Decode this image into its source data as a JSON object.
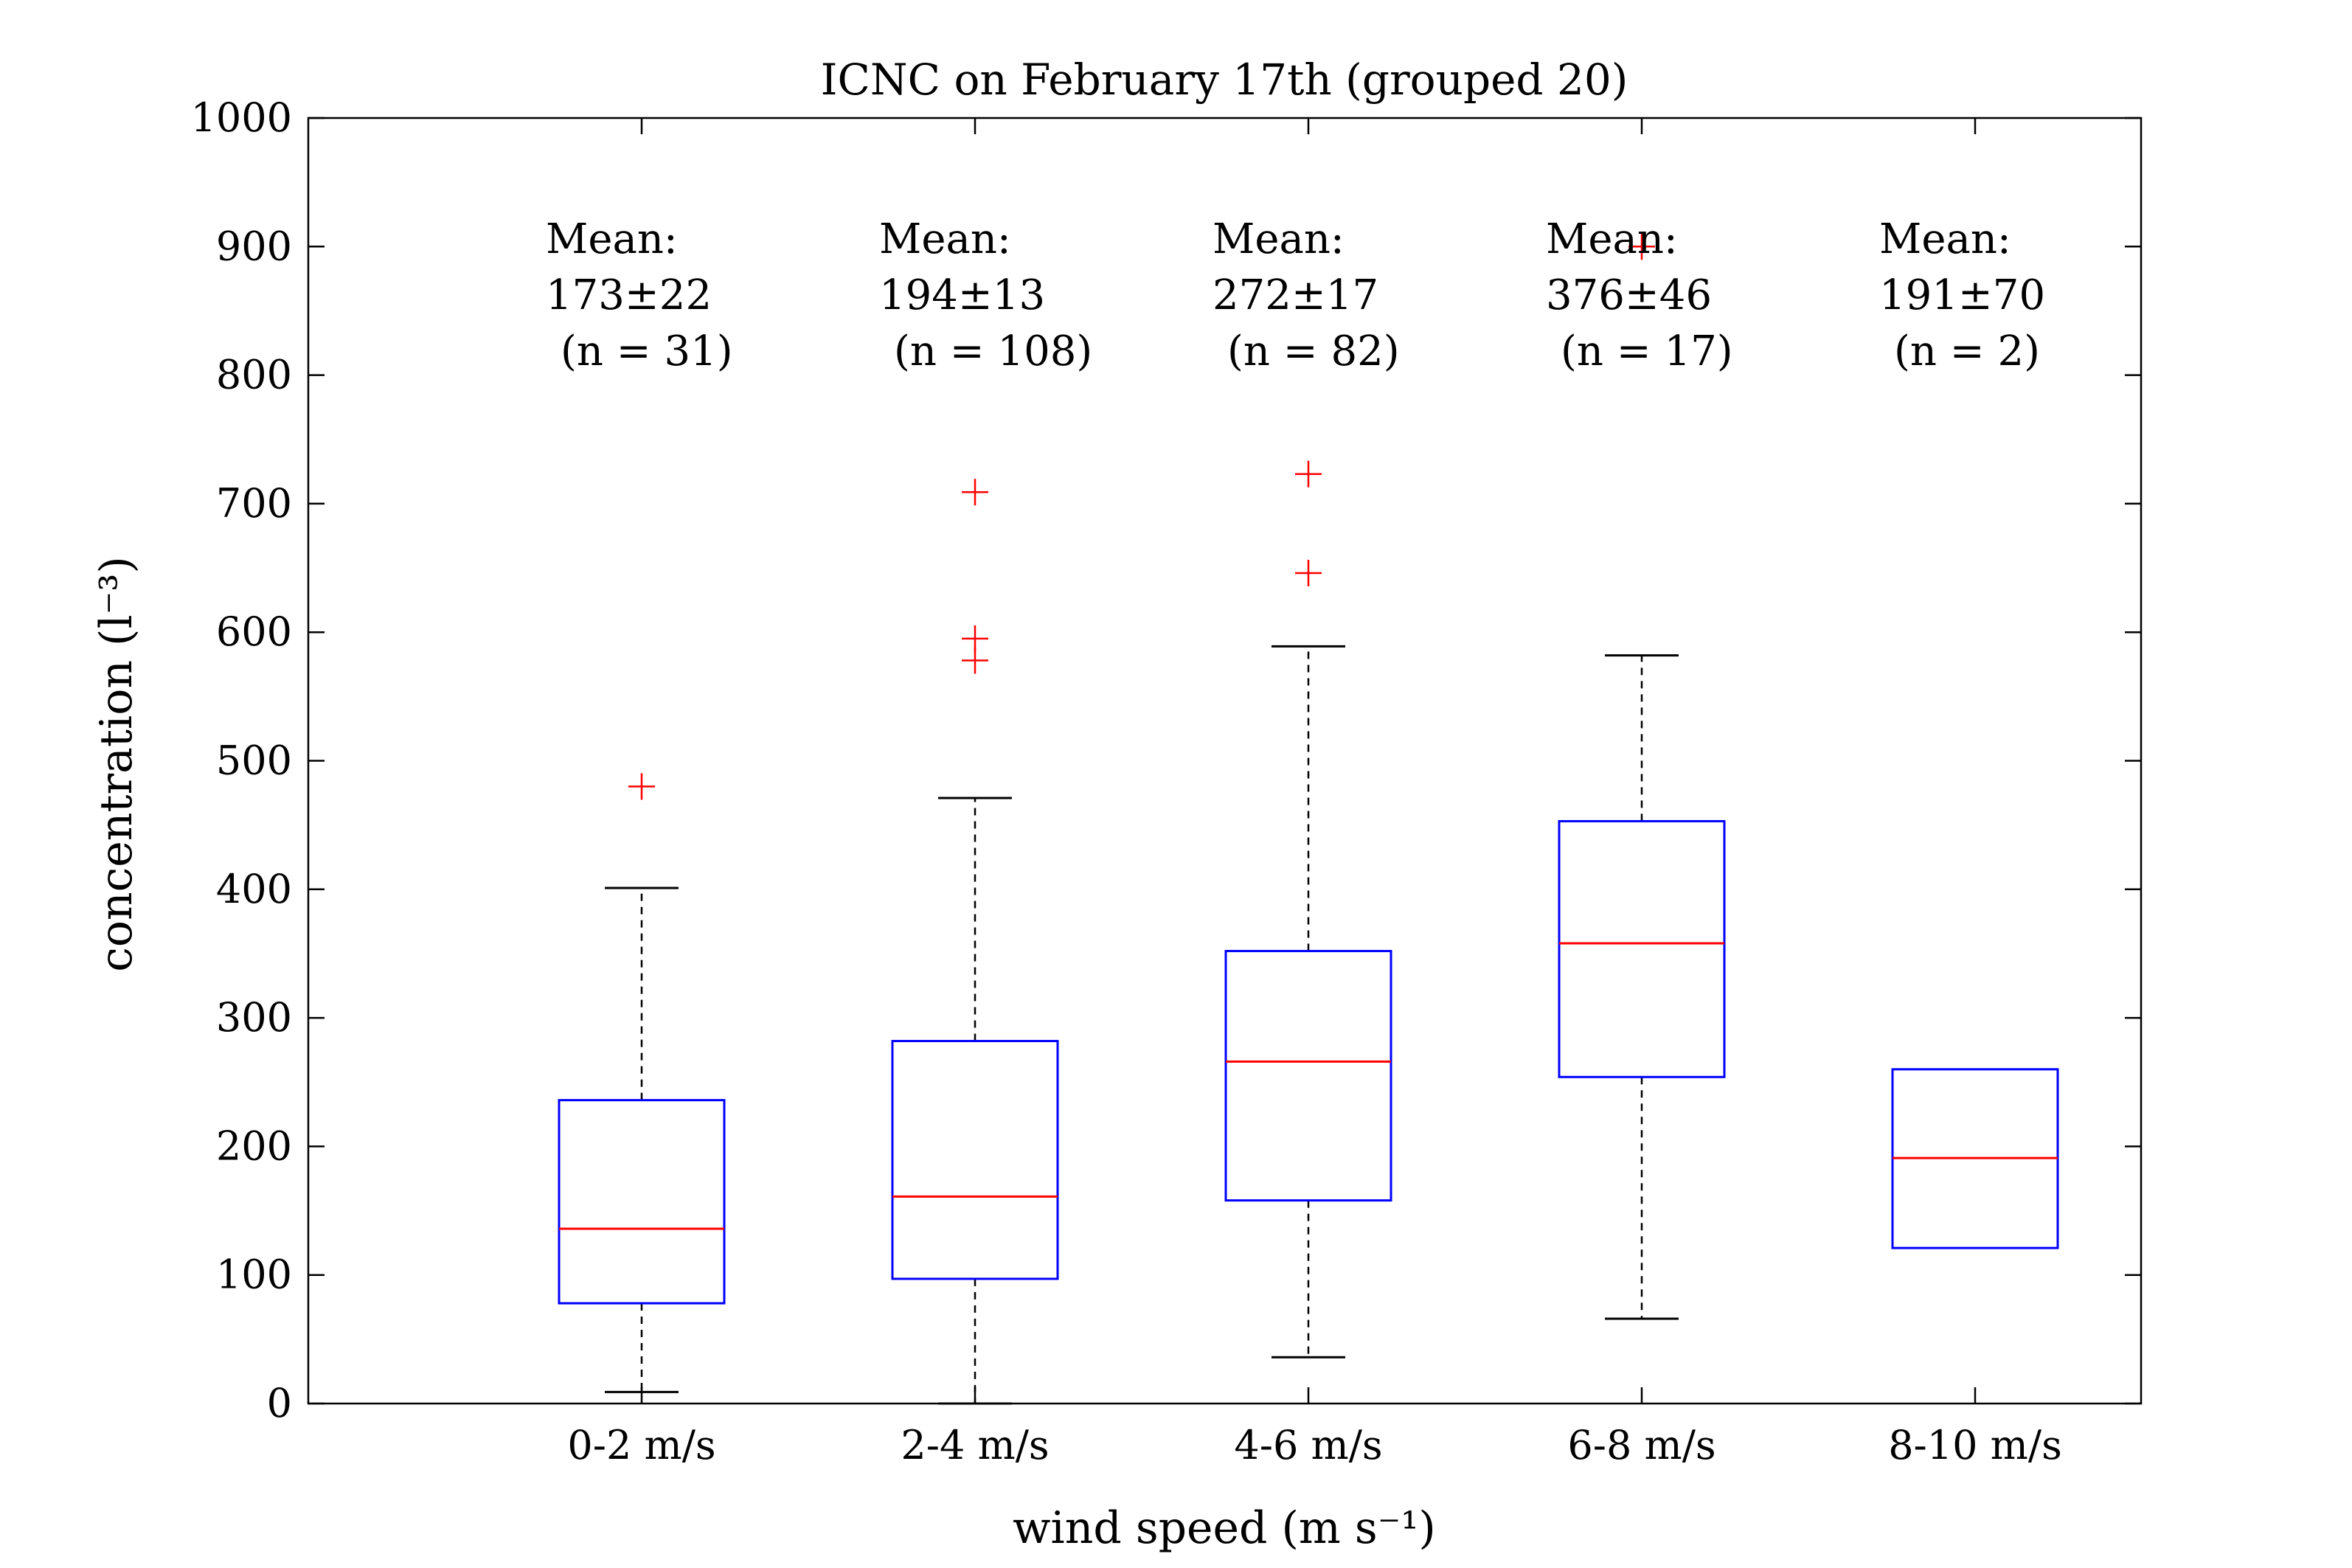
{
  "chart_data": {
    "type": "box",
    "title": "ICNC on February 17th (grouped 20)",
    "xlabel": "wind speed (m s⁻¹)",
    "ylabel": "concentration (l⁻³)",
    "ylim": [
      0,
      1000
    ],
    "yticks": [
      0,
      100,
      200,
      300,
      400,
      500,
      600,
      700,
      800,
      900,
      1000
    ],
    "categories": [
      "0-2 m/s",
      "2-4 m/s",
      "4-6 m/s",
      "6-8 m/s",
      "8-10 m/s"
    ],
    "boxes": [
      {
        "category": "0-2 m/s",
        "whisker_low": 9,
        "q1": 78,
        "median": 136,
        "q3": 236,
        "whisker_high": 401,
        "outliers": [
          480
        ],
        "annotation": {
          "line1": "Mean:",
          "line2": "173±22",
          "line3": "(n = 31)"
        }
      },
      {
        "category": "2-4 m/s",
        "whisker_low": 0,
        "q1": 97,
        "median": 161,
        "q3": 282,
        "whisker_high": 471,
        "outliers": [
          578,
          595,
          709
        ],
        "annotation": {
          "line1": "Mean:",
          "line2": "194±13",
          "line3": "(n = 108)"
        }
      },
      {
        "category": "4-6 m/s",
        "whisker_low": 36,
        "q1": 158,
        "median": 266,
        "q3": 352,
        "whisker_high": 589,
        "outliers": [
          646,
          723
        ],
        "annotation": {
          "line1": "Mean:",
          "line2": "272±17",
          "line3": "(n = 82)"
        }
      },
      {
        "category": "6-8 m/s",
        "whisker_low": 66,
        "q1": 254,
        "median": 358,
        "q3": 453,
        "whisker_high": 582,
        "outliers": [
          900
        ],
        "annotation": {
          "line1": "Mean:",
          "line2": "376±46",
          "line3": "(n = 17)"
        }
      },
      {
        "category": "8-10 m/s",
        "whisker_low": null,
        "q1": 121,
        "median": 191,
        "q3": 260,
        "whisker_high": null,
        "outliers": [],
        "annotation": {
          "line1": "Mean:",
          "line2": "191±70",
          "line3": "(n = 2)"
        }
      }
    ],
    "grid": false,
    "colors": {
      "box": "#0000ff",
      "median": "#ff0000",
      "outlier": "#ff0000",
      "whisker": "#000000",
      "axes": "#000000"
    }
  }
}
